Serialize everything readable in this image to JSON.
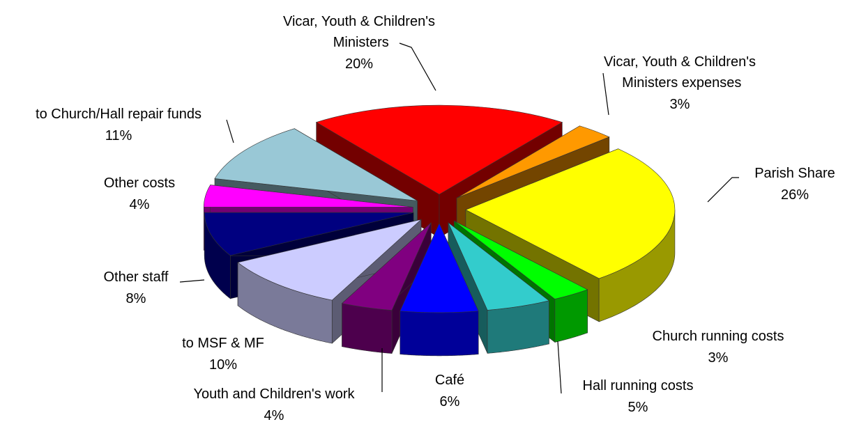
{
  "chart_data": {
    "type": "pie",
    "categories": [
      "Vicar, Youth & Children's Ministers",
      "Vicar, Youth & Children's Ministers expenses",
      "Parish Share",
      "Church running costs",
      "Hall running costs",
      "Café",
      "Youth and Children's work",
      "to MSF & MF",
      "Other staff",
      "Other costs",
      "to Church/Hall repair funds"
    ],
    "values": [
      20,
      3,
      26,
      3,
      5,
      6,
      4,
      10,
      8,
      4,
      11
    ],
    "value_labels": [
      "20%",
      "3%",
      "26%",
      "3%",
      "5%",
      "6%",
      "4%",
      "10%",
      "8%",
      "4%",
      "11%"
    ],
    "colors": [
      "#ff0000",
      "#ff9900",
      "#ffff00",
      "#00ff00",
      "#33cccc",
      "#0000ff",
      "#800080",
      "#ccccff",
      "#000080",
      "#ff00ff",
      "#99c8d6"
    ]
  }
}
